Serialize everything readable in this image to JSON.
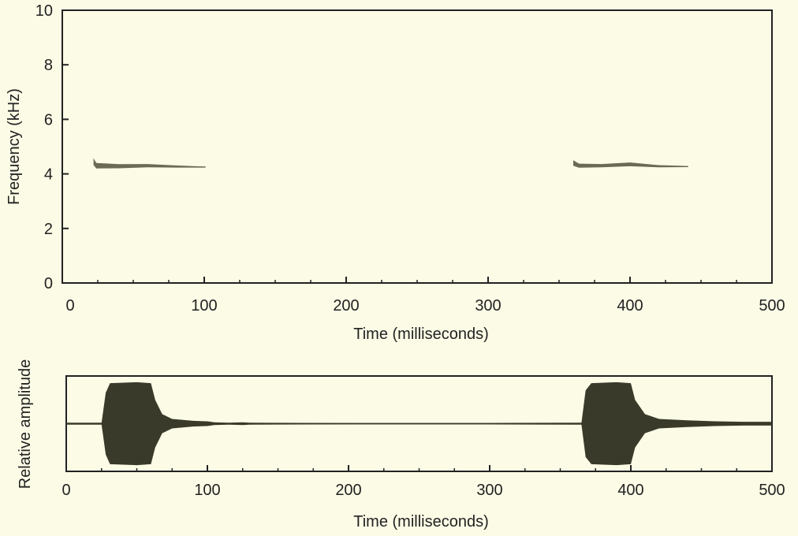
{
  "colors": {
    "background": "#fcfbe6",
    "axis": "#222222",
    "signal": "#3a3a2a",
    "spectro_trace": "#5a5a45"
  },
  "chart_data": [
    {
      "type": "spectrogram",
      "xlabel": "Time (milliseconds)",
      "ylabel": "Frequency (kHz)",
      "xlim": [
        0,
        500
      ],
      "ylim": [
        0,
        10
      ],
      "x_ticks": [
        0,
        100,
        200,
        300,
        400,
        500
      ],
      "y_ticks": [
        0,
        2,
        4,
        6,
        8,
        10
      ],
      "grid": false,
      "notes_series": [
        {
          "points": [
            [
              22,
              4.45
            ],
            [
              24,
              4.3
            ],
            [
              40,
              4.28
            ],
            [
              60,
              4.3
            ],
            [
              80,
              4.27
            ],
            [
              101,
              4.25
            ]
          ],
          "thickness_khz": [
            0.25,
            0.2,
            0.15,
            0.12,
            0.08,
            0.04
          ]
        },
        {
          "points": [
            [
              360,
              4.4
            ],
            [
              364,
              4.3
            ],
            [
              380,
              4.3
            ],
            [
              400,
              4.35
            ],
            [
              420,
              4.28
            ],
            [
              441,
              4.27
            ]
          ],
          "thickness_khz": [
            0.2,
            0.15,
            0.12,
            0.14,
            0.08,
            0.04
          ]
        }
      ]
    },
    {
      "type": "waveform",
      "xlabel": "Time (milliseconds)",
      "ylabel": "Relative amplitude",
      "xlim": [
        0,
        500
      ],
      "ylim": [
        -1,
        1
      ],
      "x_ticks": [
        0,
        100,
        200,
        300,
        400,
        500
      ],
      "grid": false,
      "envelope": [
        [
          0,
          0.02
        ],
        [
          25,
          0.02
        ],
        [
          28,
          0.65
        ],
        [
          31,
          0.85
        ],
        [
          50,
          0.87
        ],
        [
          60,
          0.85
        ],
        [
          63,
          0.5
        ],
        [
          68,
          0.2
        ],
        [
          75,
          0.1
        ],
        [
          90,
          0.06
        ],
        [
          100,
          0.05
        ],
        [
          105,
          0.03
        ],
        [
          115,
          0.02
        ],
        [
          125,
          0.03
        ],
        [
          130,
          0.02
        ],
        [
          200,
          0.015
        ],
        [
          300,
          0.015
        ],
        [
          360,
          0.02
        ],
        [
          365,
          0.02
        ],
        [
          368,
          0.7
        ],
        [
          372,
          0.85
        ],
        [
          390,
          0.87
        ],
        [
          400,
          0.85
        ],
        [
          403,
          0.5
        ],
        [
          410,
          0.2
        ],
        [
          420,
          0.1
        ],
        [
          440,
          0.07
        ],
        [
          460,
          0.05
        ],
        [
          480,
          0.04
        ],
        [
          500,
          0.04
        ]
      ]
    }
  ]
}
